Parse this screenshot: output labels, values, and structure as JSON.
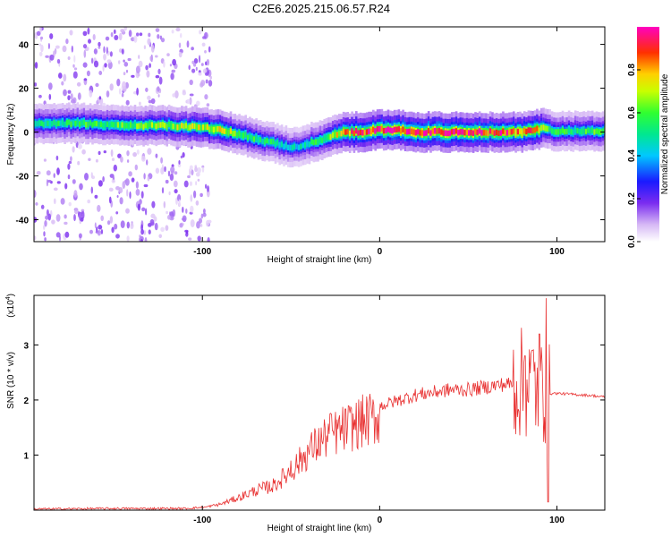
{
  "figure": {
    "title": "C2E6.2025.215.06.57.R24"
  },
  "chart_data": [
    {
      "type": "heatmap",
      "name": "spectrogram",
      "xlabel": "Height of straight line (km)",
      "ylabel": "Frequency (Hz)",
      "xlim": [
        -195,
        127
      ],
      "ylim": [
        -50,
        48
      ],
      "x_ticks": [
        "-100",
        "0",
        "100"
      ],
      "x_tick_values": [
        -100,
        0,
        100
      ],
      "y_ticks": [
        "-40",
        "-20",
        "0",
        "20",
        "40"
      ],
      "y_tick_values": [
        -40,
        -20,
        0,
        20,
        40
      ],
      "colorbar": {
        "label": "Normalized spectral amplitude",
        "range": [
          0,
          1
        ],
        "ticks": [
          "0.0",
          "0.2",
          "0.4",
          "0.6",
          "0.8"
        ],
        "tick_values": [
          0,
          0.2,
          0.4,
          0.6,
          0.8
        ],
        "colormap": "rainbow (violet to red)"
      },
      "ridge": {
        "description": "Dominant frequency ridge versus height",
        "x": [
          -195,
          -170,
          -140,
          -120,
          -100,
          -90,
          -80,
          -70,
          -60,
          -50,
          -45,
          -40,
          -35,
          -30,
          -25,
          -20,
          -10,
          0,
          10,
          20,
          40,
          60,
          80,
          88,
          92,
          95,
          100,
          110,
          127
        ],
        "y": [
          4,
          4,
          3,
          3,
          2,
          1,
          -1,
          -3,
          -5,
          -7,
          -7,
          -5,
          -4,
          -3,
          -1,
          0,
          0,
          1,
          1,
          0,
          0,
          0,
          0,
          1,
          2,
          1,
          0.5,
          0.5,
          0.5
        ],
        "peak_amplitude": [
          0.5,
          0.55,
          0.6,
          0.65,
          0.7,
          0.75,
          0.6,
          0.55,
          0.5,
          0.45,
          0.45,
          0.5,
          0.55,
          0.6,
          0.7,
          0.8,
          0.9,
          0.95,
          0.95,
          0.95,
          0.95,
          0.9,
          0.85,
          0.9,
          0.7,
          0.6,
          0.55,
          0.55,
          0.6
        ]
      },
      "scatter_noise_region_x": [
        -195,
        -95
      ]
    },
    {
      "type": "line",
      "name": "snr",
      "xlabel": "Height of straight line (km)",
      "ylabel": "SNR (10 * v/v)",
      "y_scale_label": "(x10",
      "y_scale_exp": "4",
      "xlim": [
        -195,
        127
      ],
      "ylim": [
        0,
        3.9
      ],
      "x_ticks": [
        "-100",
        "0",
        "100"
      ],
      "x_tick_values": [
        -100,
        0,
        100
      ],
      "y_ticks": [
        "1",
        "2",
        "3"
      ],
      "y_tick_values": [
        1,
        2,
        3
      ],
      "color": "#e83030",
      "envelope": {
        "x": [
          -195,
          -150,
          -110,
          -100,
          -90,
          -80,
          -70,
          -60,
          -50,
          -40,
          -30,
          -20,
          -10,
          0,
          10,
          20,
          30,
          40,
          50,
          60,
          70,
          75,
          80,
          85,
          90,
          93,
          95,
          100,
          110,
          120,
          127
        ],
        "y": [
          0.02,
          0.03,
          0.03,
          0.05,
          0.12,
          0.25,
          0.4,
          0.5,
          0.8,
          1.2,
          1.5,
          1.65,
          1.8,
          1.9,
          2.0,
          2.1,
          2.15,
          2.2,
          2.2,
          2.25,
          2.3,
          2.3,
          2.3,
          2.35,
          2.2,
          2.1,
          2.12,
          2.12,
          2.1,
          2.08,
          2.05
        ]
      },
      "spikes": [
        {
          "x": 94,
          "y": 3.85
        },
        {
          "x": 90,
          "y": 3.2
        },
        {
          "x": 86,
          "y": 2.9
        },
        {
          "x": 82,
          "y": 2.8
        },
        {
          "x": 95,
          "y": 0.15
        },
        {
          "x": -28,
          "y": 1.75
        },
        {
          "x": -32,
          "y": 1.2
        },
        {
          "x": -50,
          "y": 0.9
        }
      ]
    }
  ]
}
